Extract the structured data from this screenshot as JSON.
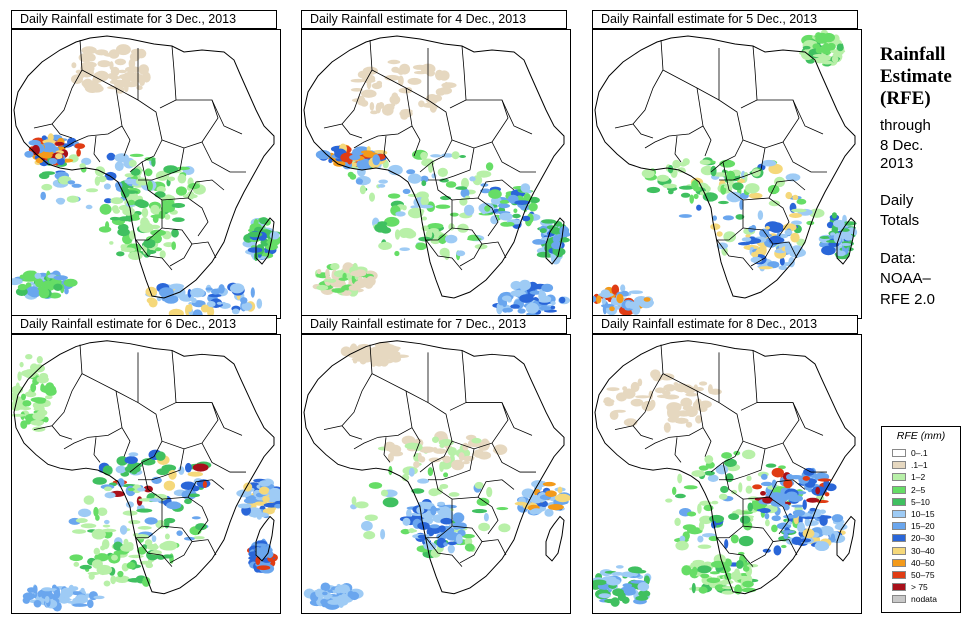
{
  "panels": [
    {
      "title": "Daily Rainfall estimate for  3 Dec., 2013"
    },
    {
      "title": "Daily Rainfall estimate for  4 Dec., 2013"
    },
    {
      "title": "Daily Rainfall estimate for  5 Dec., 2013"
    },
    {
      "title": "Daily Rainfall estimate for  6 Dec., 2013"
    },
    {
      "title": "Daily Rainfall estimate for  7 Dec., 2013"
    },
    {
      "title": "Daily Rainfall estimate for  8 Dec., 2013"
    }
  ],
  "sidebar": {
    "title_line1": "Rainfall",
    "title_line2": "Estimate",
    "title_line3": "(RFE)",
    "through": "through",
    "date_line1": "8 Dec.",
    "date_line2": "2013",
    "daily": "Daily",
    "totals": "Totals",
    "data_label": "Data:",
    "source_line1": "NOAA–",
    "source_line2": "RFE 2.0"
  },
  "legend": {
    "title": "RFE (mm)",
    "items": [
      {
        "label": "0–.1",
        "color": "#ffffff"
      },
      {
        "label": ".1–1",
        "color": "#e6d8c0"
      },
      {
        "label": "1–2",
        "color": "#b8f0a8"
      },
      {
        "label": "2–5",
        "color": "#66dd66"
      },
      {
        "label": "5–10",
        "color": "#40c060"
      },
      {
        "label": "10–15",
        "color": "#9ecbf5"
      },
      {
        "label": "15–20",
        "color": "#6aa6ee"
      },
      {
        "label": "20–30",
        "color": "#2a66d8"
      },
      {
        "label": "30–40",
        "color": "#f5d87a"
      },
      {
        "label": "40–50",
        "color": "#f39a1a"
      },
      {
        "label": "50–75",
        "color": "#e03c14"
      },
      {
        "label": "> 75",
        "color": "#a8101a"
      },
      {
        "label": "nodata",
        "color": "#c8c8c8"
      }
    ]
  }
}
